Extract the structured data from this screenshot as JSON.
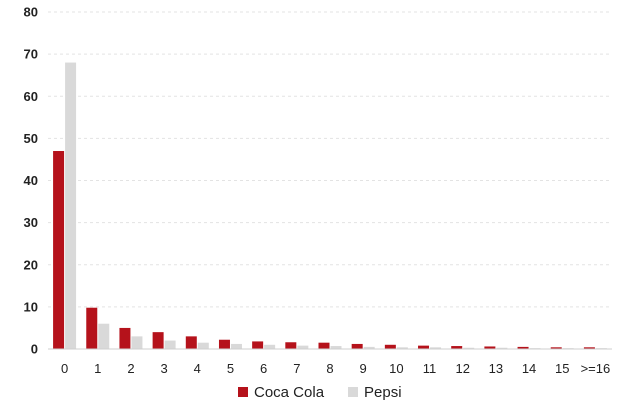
{
  "chart_data": {
    "type": "bar",
    "categories": [
      "0",
      "1",
      "2",
      "3",
      "4",
      "5",
      "6",
      "7",
      "8",
      "9",
      "10",
      "11",
      "12",
      "13",
      "14",
      "15",
      ">=16"
    ],
    "series": [
      {
        "name": "Coca Cola",
        "color": "#b5121b",
        "values": [
          47,
          9.8,
          5,
          4,
          3,
          2.2,
          1.8,
          1.6,
          1.5,
          1.2,
          1,
          0.8,
          0.7,
          0.6,
          0.5,
          0.4,
          0.4
        ]
      },
      {
        "name": "Pepsi",
        "color": "#d9d9d9",
        "values": [
          68,
          6,
          3,
          2,
          1.5,
          1.2,
          1,
          0.8,
          0.7,
          0.5,
          0.4,
          0.4,
          0.3,
          0.3,
          0.2,
          0.2,
          0.2
        ]
      }
    ],
    "yticks": [
      0,
      10,
      20,
      30,
      40,
      50,
      60,
      70,
      80
    ],
    "ylim": [
      0,
      80
    ],
    "grid": true,
    "legend_position": "bottom-center",
    "title": "",
    "xlabel": "",
    "ylabel": ""
  }
}
